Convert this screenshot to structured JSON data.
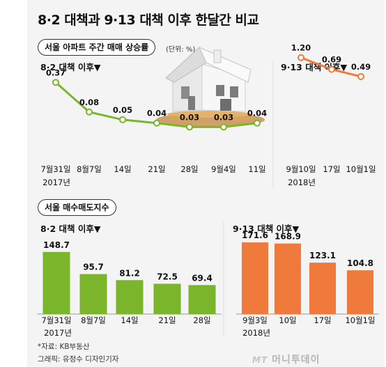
{
  "title": "8·2 대책과 9·13 대책 이후 한달간 비교",
  "colors": {
    "green": "#7bb52b",
    "orange": "#f07a3c",
    "panel": "#f4f4f4"
  },
  "top_section": {
    "label": "서울 아파트 주간 매매 상승률",
    "unit": "(단위: %)"
  },
  "bottom_section": {
    "label": "서울 매수매도지수"
  },
  "footer": {
    "source": "*자료: KB부동산",
    "credit": "그래픽: 유정수 디자인기자",
    "brand": "머니투데이",
    "brand_mark": "MT"
  },
  "chart_data": [
    {
      "type": "line",
      "series_label": "8·2 대책 이후▼",
      "x": [
        "7월31일",
        "8월7일",
        "14일",
        "21일",
        "28일",
        "9월4일",
        "11일"
      ],
      "year_label": "2017년",
      "values": [
        0.37,
        0.08,
        0.05,
        0.04,
        0.03,
        0.03,
        0.04
      ],
      "value_labels": [
        "0.37",
        "0.08",
        "0.05",
        "0.04",
        "0.03",
        "0.03",
        "0.04"
      ],
      "color": "#7bb52b"
    },
    {
      "type": "line",
      "series_label": "9·13 대책 이후▼",
      "x": [
        "9월10일",
        "17일",
        "10월1일"
      ],
      "year_label": "2018년",
      "values": [
        1.2,
        0.69,
        0.49
      ],
      "value_labels": [
        "1.20",
        "0.69",
        "0.49"
      ],
      "color": "#f07a3c"
    },
    {
      "type": "bar",
      "series_label": "8·2 대책 이후▼",
      "categories": [
        "7월31일",
        "8월7일",
        "14일",
        "21일",
        "28일"
      ],
      "year_label": "2017년",
      "values": [
        148.7,
        95.7,
        81.2,
        72.5,
        69.4
      ],
      "value_labels": [
        "148.7",
        "95.7",
        "81.2",
        "72.5",
        "69.4"
      ],
      "color": "#7bb52b"
    },
    {
      "type": "bar",
      "series_label": "9·13 대책 이후▼",
      "categories": [
        "9월3일",
        "10일",
        "17일",
        "10월1일"
      ],
      "year_label": "2018년",
      "values": [
        171.6,
        168.9,
        123.1,
        104.8
      ],
      "value_labels": [
        "171.6",
        "168.9",
        "123.1",
        "104.8"
      ],
      "color": "#f07a3c"
    }
  ]
}
